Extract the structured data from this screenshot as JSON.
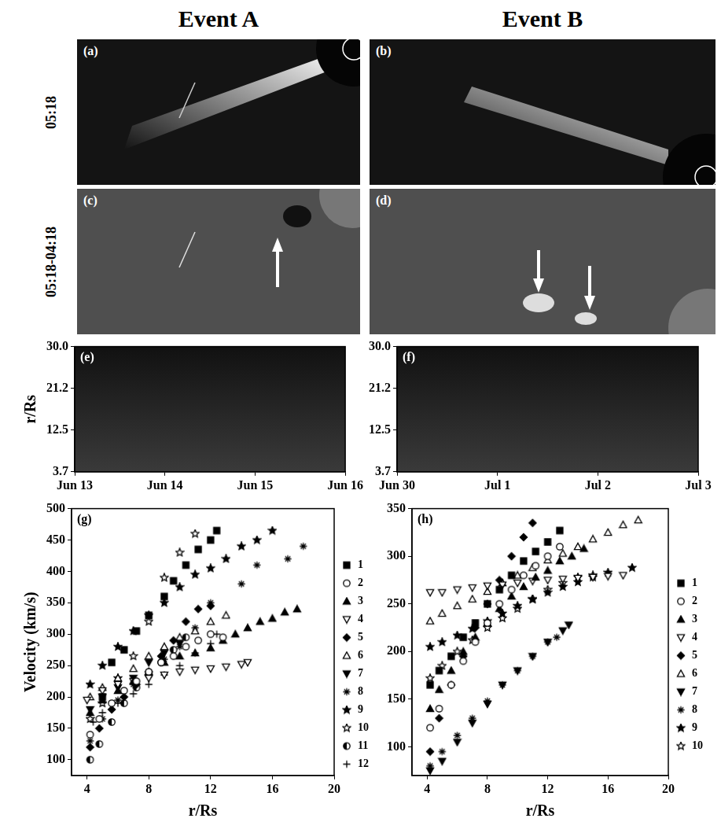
{
  "columns": [
    "Event A",
    "Event B"
  ],
  "rows": [
    "05:18",
    "05:18-04:18"
  ],
  "images": [
    {
      "label": "(a)"
    },
    {
      "label": "(b)"
    },
    {
      "label": "(c)"
    },
    {
      "label": "(d)"
    }
  ],
  "chart_data": [
    {
      "type": "image",
      "label": "(e)",
      "ylabel": "r/Rs",
      "categories": [
        "Jun 13",
        "Jun 14",
        "Jun 15",
        "Jun 16"
      ],
      "ylim": [
        3.7,
        30.0
      ],
      "yticks": [
        3.7,
        12.5,
        21.2,
        {
          "value": 30.0,
          "label": "30.0"
        }
      ],
      "grid": false
    },
    {
      "type": "image",
      "label": "(f)",
      "categories": [
        "Jun 30",
        "Jul 1",
        "Jul 2",
        "Jul 3"
      ],
      "ylim": [
        3.7,
        30.0
      ],
      "yticks": [
        3.7,
        12.5,
        21.2,
        {
          "value": 30.0,
          "label": "30.0"
        }
      ],
      "grid": false
    },
    {
      "type": "scatter",
      "label": "(g)",
      "xlabel": "r/Rs",
      "ylabel": "Velocity (km/s)",
      "xlim": [
        3,
        20
      ],
      "xticks": [
        4,
        8,
        12,
        16,
        20
      ],
      "ylim": [
        75,
        500
      ],
      "yticks": [
        100,
        150,
        200,
        250,
        300,
        350,
        400,
        450,
        500
      ],
      "grid": false,
      "legend": "right",
      "series": [
        {
          "name": "1",
          "color": "#000000",
          "marker": "filled-square",
          "x": [
            5,
            5.6,
            6.4,
            7.2,
            8,
            9,
            9.6,
            10.4,
            11.2,
            12,
            12.4
          ],
          "values": [
            200,
            255,
            275,
            305,
            330,
            360,
            385,
            410,
            435,
            450,
            465
          ]
        },
        {
          "name": "2",
          "color": "#000000",
          "marker": "open-circle",
          "x": [
            4.2,
            4.8,
            5.6,
            6.4,
            7.2,
            8,
            8.8,
            9.6,
            10.4,
            11.2,
            12,
            12.8
          ],
          "values": [
            140,
            165,
            190,
            210,
            225,
            240,
            255,
            265,
            280,
            290,
            300,
            295
          ]
        },
        {
          "name": "3",
          "color": "#000000",
          "marker": "filled-triangle",
          "x": [
            4.2,
            5,
            6,
            7,
            8,
            9,
            10,
            11,
            12,
            12.8,
            13.6,
            14.4,
            15.2,
            16,
            16.8,
            17.6
          ],
          "values": [
            175,
            195,
            210,
            225,
            240,
            255,
            265,
            270,
            278,
            290,
            300,
            310,
            320,
            325,
            335,
            340
          ]
        },
        {
          "name": "4",
          "color": "#000000",
          "marker": "open-triangle-down",
          "x": [
            4,
            5,
            6,
            7,
            8,
            9,
            10,
            11,
            12,
            13,
            14,
            14.4
          ],
          "values": [
            195,
            210,
            220,
            225,
            230,
            235,
            240,
            243,
            245,
            248,
            252,
            255
          ]
        },
        {
          "name": "5",
          "color": "#000000",
          "marker": "filled-diamond",
          "x": [
            4.2,
            4.8,
            5.6,
            6.4,
            7.2,
            8,
            8.8,
            9.6,
            10.4,
            11.2,
            12
          ],
          "values": [
            120,
            150,
            180,
            200,
            220,
            240,
            265,
            290,
            320,
            340,
            345
          ]
        },
        {
          "name": "6",
          "color": "#000000",
          "marker": "open-triangle",
          "x": [
            4.2,
            5,
            6,
            7,
            8,
            9,
            10,
            11,
            12,
            13
          ],
          "values": [
            200,
            215,
            230,
            245,
            265,
            280,
            295,
            305,
            320,
            330
          ]
        },
        {
          "name": "7",
          "color": "#000000",
          "marker": "filled-triangle-down",
          "x": [
            4.2,
            5,
            6,
            7,
            8,
            9,
            10
          ],
          "values": [
            180,
            200,
            215,
            230,
            255,
            270,
            285
          ]
        },
        {
          "name": "8",
          "color": "#000000",
          "marker": "asterisk",
          "x": [
            4.2,
            5,
            6,
            7,
            8,
            9,
            10,
            11,
            12,
            14,
            15,
            17,
            18
          ],
          "values": [
            130,
            165,
            195,
            220,
            240,
            260,
            280,
            310,
            350,
            380,
            410,
            420,
            440
          ]
        },
        {
          "name": "9",
          "color": "#000000",
          "marker": "filled-star",
          "x": [
            4.2,
            5,
            6,
            7,
            8,
            9,
            10,
            11,
            12,
            13,
            14,
            15,
            16
          ],
          "values": [
            220,
            250,
            280,
            305,
            330,
            350,
            375,
            395,
            405,
            420,
            440,
            450,
            465
          ]
        },
        {
          "name": "10",
          "color": "#000000",
          "marker": "open-star",
          "x": [
            4.2,
            5,
            6,
            7,
            8,
            9,
            10,
            11
          ],
          "values": [
            165,
            190,
            230,
            265,
            320,
            390,
            430,
            460
          ]
        },
        {
          "name": "11",
          "color": "#000000",
          "marker": "half-circle",
          "x": [
            4.2,
            4.8,
            5.6,
            6.4,
            7.2,
            8,
            8.8,
            9.6,
            10.4
          ],
          "values": [
            100,
            125,
            160,
            190,
            215,
            235,
            255,
            275,
            295
          ]
        },
        {
          "name": "12",
          "color": "#000000",
          "marker": "plus",
          "x": [
            4.4,
            5,
            6,
            7,
            8,
            9,
            10,
            11,
            12,
            12.4
          ],
          "values": [
            160,
            175,
            190,
            205,
            220,
            235,
            250,
            270,
            285,
            300
          ]
        }
      ]
    },
    {
      "type": "scatter",
      "label": "(h)",
      "xlabel": "r/Rs",
      "xlim": [
        3,
        20
      ],
      "xticks": [
        4,
        8,
        12,
        16,
        20
      ],
      "ylim": [
        70,
        350
      ],
      "yticks": [
        100,
        150,
        200,
        250,
        300,
        350
      ],
      "grid": false,
      "legend": "right",
      "series": [
        {
          "name": "1",
          "color": "#000000",
          "marker": "filled-square",
          "x": [
            4.2,
            4.8,
            5.6,
            6.4,
            7.2,
            8,
            8.8,
            9.6,
            10.4,
            11.2,
            12,
            12.8
          ],
          "values": [
            165,
            180,
            195,
            215,
            230,
            250,
            265,
            280,
            295,
            305,
            315,
            327
          ]
        },
        {
          "name": "2",
          "color": "#000000",
          "marker": "open-circle",
          "x": [
            4.2,
            4.8,
            5.6,
            6.4,
            7.2,
            8,
            8.8,
            9.6,
            10.4,
            11.2,
            12,
            12.8
          ],
          "values": [
            120,
            140,
            165,
            190,
            210,
            230,
            250,
            265,
            280,
            290,
            300,
            310
          ]
        },
        {
          "name": "3",
          "color": "#000000",
          "marker": "filled-triangle",
          "x": [
            4.2,
            4.8,
            5.6,
            6.4,
            7.2,
            8,
            8.8,
            9.6,
            10.4,
            11.2,
            12,
            12.8,
            13.6,
            14.4
          ],
          "values": [
            140,
            160,
            180,
            200,
            215,
            230,
            245,
            258,
            268,
            278,
            285,
            295,
            300,
            308
          ]
        },
        {
          "name": "4",
          "color": "#000000",
          "marker": "open-triangle-down",
          "x": [
            4.2,
            5,
            6,
            7,
            8,
            9,
            10,
            11,
            12,
            13,
            14,
            15,
            16,
            17
          ],
          "values": [
            262,
            262,
            265,
            267,
            269,
            270,
            272,
            274,
            275,
            276,
            277,
            278,
            279,
            280
          ]
        },
        {
          "name": "5",
          "color": "#000000",
          "marker": "filled-diamond",
          "x": [
            4.2,
            4.8,
            5.6,
            6.4,
            7.2,
            8,
            8.8,
            9.6,
            10.4,
            11
          ],
          "values": [
            95,
            130,
            165,
            195,
            225,
            250,
            275,
            300,
            320,
            335
          ]
        },
        {
          "name": "6",
          "color": "#000000",
          "marker": "open-triangle",
          "x": [
            4.2,
            5,
            6,
            7,
            8,
            9,
            10,
            11,
            12,
            13,
            14,
            15,
            16,
            17,
            18
          ],
          "values": [
            232,
            240,
            248,
            255,
            263,
            272,
            280,
            288,
            296,
            303,
            310,
            318,
            325,
            333,
            338
          ]
        },
        {
          "name": "7",
          "color": "#000000",
          "marker": "filled-triangle-down",
          "x": [
            4.2,
            5,
            6,
            7,
            8,
            9,
            10,
            11,
            12,
            13,
            13.4
          ],
          "values": [
            75,
            85,
            105,
            125,
            145,
            165,
            180,
            195,
            210,
            222,
            228
          ]
        },
        {
          "name": "8",
          "color": "#000000",
          "marker": "asterisk",
          "x": [
            4.2,
            5,
            6,
            7,
            8,
            9,
            10,
            11,
            12,
            12.6
          ],
          "values": [
            80,
            95,
            112,
            130,
            148,
            165,
            180,
            195,
            210,
            215
          ]
        },
        {
          "name": "9",
          "color": "#000000",
          "marker": "filled-star",
          "x": [
            4.2,
            5,
            6,
            7,
            8,
            9,
            10,
            11,
            12,
            13,
            14,
            15,
            16,
            17.6
          ],
          "values": [
            205,
            210,
            217,
            224,
            232,
            240,
            248,
            255,
            262,
            268,
            273,
            278,
            283,
            288
          ]
        },
        {
          "name": "10",
          "color": "#000000",
          "marker": "open-star",
          "x": [
            4.2,
            5,
            6,
            7,
            8,
            9,
            10,
            11,
            12,
            13,
            14,
            15
          ],
          "values": [
            172,
            185,
            200,
            212,
            225,
            235,
            245,
            255,
            265,
            272,
            278,
            280
          ]
        }
      ]
    }
  ]
}
